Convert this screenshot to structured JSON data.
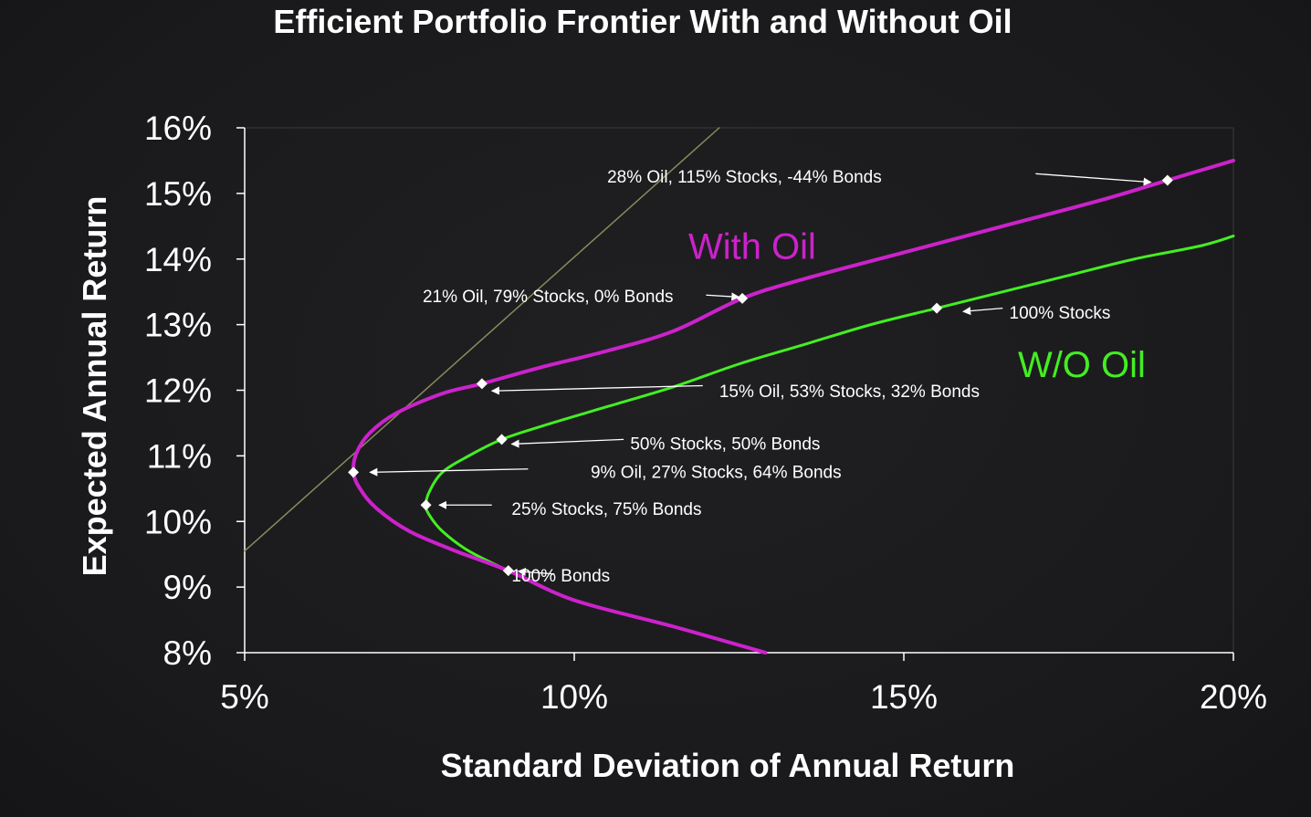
{
  "chart_data": {
    "type": "line",
    "title": "Efficient Portfolio Frontier With and Without Oil",
    "xlabel": "Standard Deviation of Annual Return",
    "ylabel": "Expected Annual Return",
    "xlim": [
      5,
      20
    ],
    "ylim": [
      8,
      16
    ],
    "x_ticks": [
      "5%",
      "10%",
      "15%",
      "20%"
    ],
    "y_ticks": [
      "8%",
      "9%",
      "10%",
      "11%",
      "12%",
      "13%",
      "14%",
      "15%",
      "16%"
    ],
    "grid": false,
    "legend": "inline labels",
    "colors": {
      "with_oil": "#cc22cc",
      "without_oil": "#44ee22",
      "tangent": "#8a8a5c",
      "axes": "#ffffff",
      "text": "#ffffff"
    },
    "series": [
      {
        "name": "With Oil",
        "label_position": [
          12.7,
          14.2
        ],
        "x": [
          12.9,
          11.5,
          10.0,
          9.0,
          8.2,
          7.5,
          7.0,
          6.75,
          6.65,
          6.7,
          6.9,
          7.3,
          8.0,
          8.6,
          9.5,
          10.5,
          11.5,
          12.55,
          13.5,
          15.0,
          16.5,
          18.0,
          19.0,
          20.0
        ],
        "y": [
          8.0,
          8.4,
          8.8,
          9.25,
          9.55,
          9.85,
          10.2,
          10.5,
          10.75,
          11.05,
          11.35,
          11.65,
          11.95,
          12.1,
          12.35,
          12.6,
          12.9,
          13.4,
          13.7,
          14.1,
          14.5,
          14.9,
          15.2,
          15.5
        ]
      },
      {
        "name": "W/O Oil",
        "label_position": [
          17.7,
          12.4
        ],
        "x": [
          12.9,
          11.5,
          10.0,
          9.0,
          8.4,
          8.0,
          7.8,
          7.75,
          7.8,
          8.0,
          8.4,
          8.9,
          9.5,
          10.5,
          11.5,
          12.5,
          13.5,
          14.5,
          15.5,
          16.5,
          17.5,
          18.5,
          19.5,
          20.0
        ],
        "y": [
          8.0,
          8.4,
          8.8,
          9.25,
          9.55,
          9.85,
          10.1,
          10.25,
          10.45,
          10.75,
          11.0,
          11.25,
          11.45,
          11.75,
          12.05,
          12.4,
          12.7,
          13.0,
          13.25,
          13.5,
          13.75,
          14.0,
          14.2,
          14.35
        ]
      },
      {
        "name": "",
        "role": "tangent line",
        "x": [
          5.0,
          12.2
        ],
        "y": [
          9.55,
          16.0
        ]
      }
    ],
    "markers": [
      {
        "x": 6.65,
        "y": 10.75
      },
      {
        "x": 8.6,
        "y": 12.1
      },
      {
        "x": 12.55,
        "y": 13.4
      },
      {
        "x": 19.0,
        "y": 15.2
      },
      {
        "x": 7.75,
        "y": 10.25
      },
      {
        "x": 8.9,
        "y": 11.25
      },
      {
        "x": 9.0,
        "y": 9.25
      },
      {
        "x": 15.5,
        "y": 13.25
      }
    ],
    "annotations": [
      {
        "text": "28% Oil, 115% Stocks, -44% Bonds",
        "text_at": [
          10.5,
          15.26
        ],
        "anchor": "start",
        "arrow_from": [
          17.0,
          15.3
        ],
        "arrow_to": [
          18.75,
          15.17
        ]
      },
      {
        "text": "21% Oil, 79% Stocks, 0% Bonds",
        "text_at": [
          7.7,
          13.44
        ],
        "anchor": "start",
        "arrow_from": [
          12.0,
          13.45
        ],
        "arrow_to": [
          12.5,
          13.42
        ]
      },
      {
        "text": "15% Oil, 53% Stocks, 32% Bonds",
        "text_at": [
          12.2,
          11.99
        ],
        "anchor": "start",
        "arrow_from": [
          11.95,
          12.07
        ],
        "arrow_to": [
          8.75,
          11.99
        ]
      },
      {
        "text": "50% Stocks, 50% Bonds",
        "text_at": [
          10.85,
          11.19
        ],
        "anchor": "start",
        "arrow_from": [
          10.75,
          11.25
        ],
        "arrow_to": [
          9.05,
          11.18
        ]
      },
      {
        "text": "9% Oil, 27% Stocks, 64% Bonds",
        "text_at": [
          10.25,
          10.76
        ],
        "anchor": "start",
        "arrow_from": [
          9.3,
          10.8
        ],
        "arrow_to": [
          6.9,
          10.75
        ]
      },
      {
        "text": "25% Stocks, 75% Bonds",
        "text_at": [
          9.05,
          10.2
        ],
        "anchor": "start",
        "arrow_from": [
          8.75,
          10.25
        ],
        "arrow_to": [
          7.95,
          10.25
        ]
      },
      {
        "text": "100% Bonds",
        "text_at": [
          9.05,
          9.18
        ],
        "anchor": "start",
        "arrow_from": [
          9.7,
          9.2
        ],
        "arrow_to": [
          9.15,
          9.24
        ]
      },
      {
        "text": "100% Stocks",
        "text_at": [
          16.6,
          13.19
        ],
        "anchor": "start",
        "arrow_from": [
          16.5,
          13.25
        ],
        "arrow_to": [
          15.9,
          13.2
        ]
      }
    ]
  }
}
